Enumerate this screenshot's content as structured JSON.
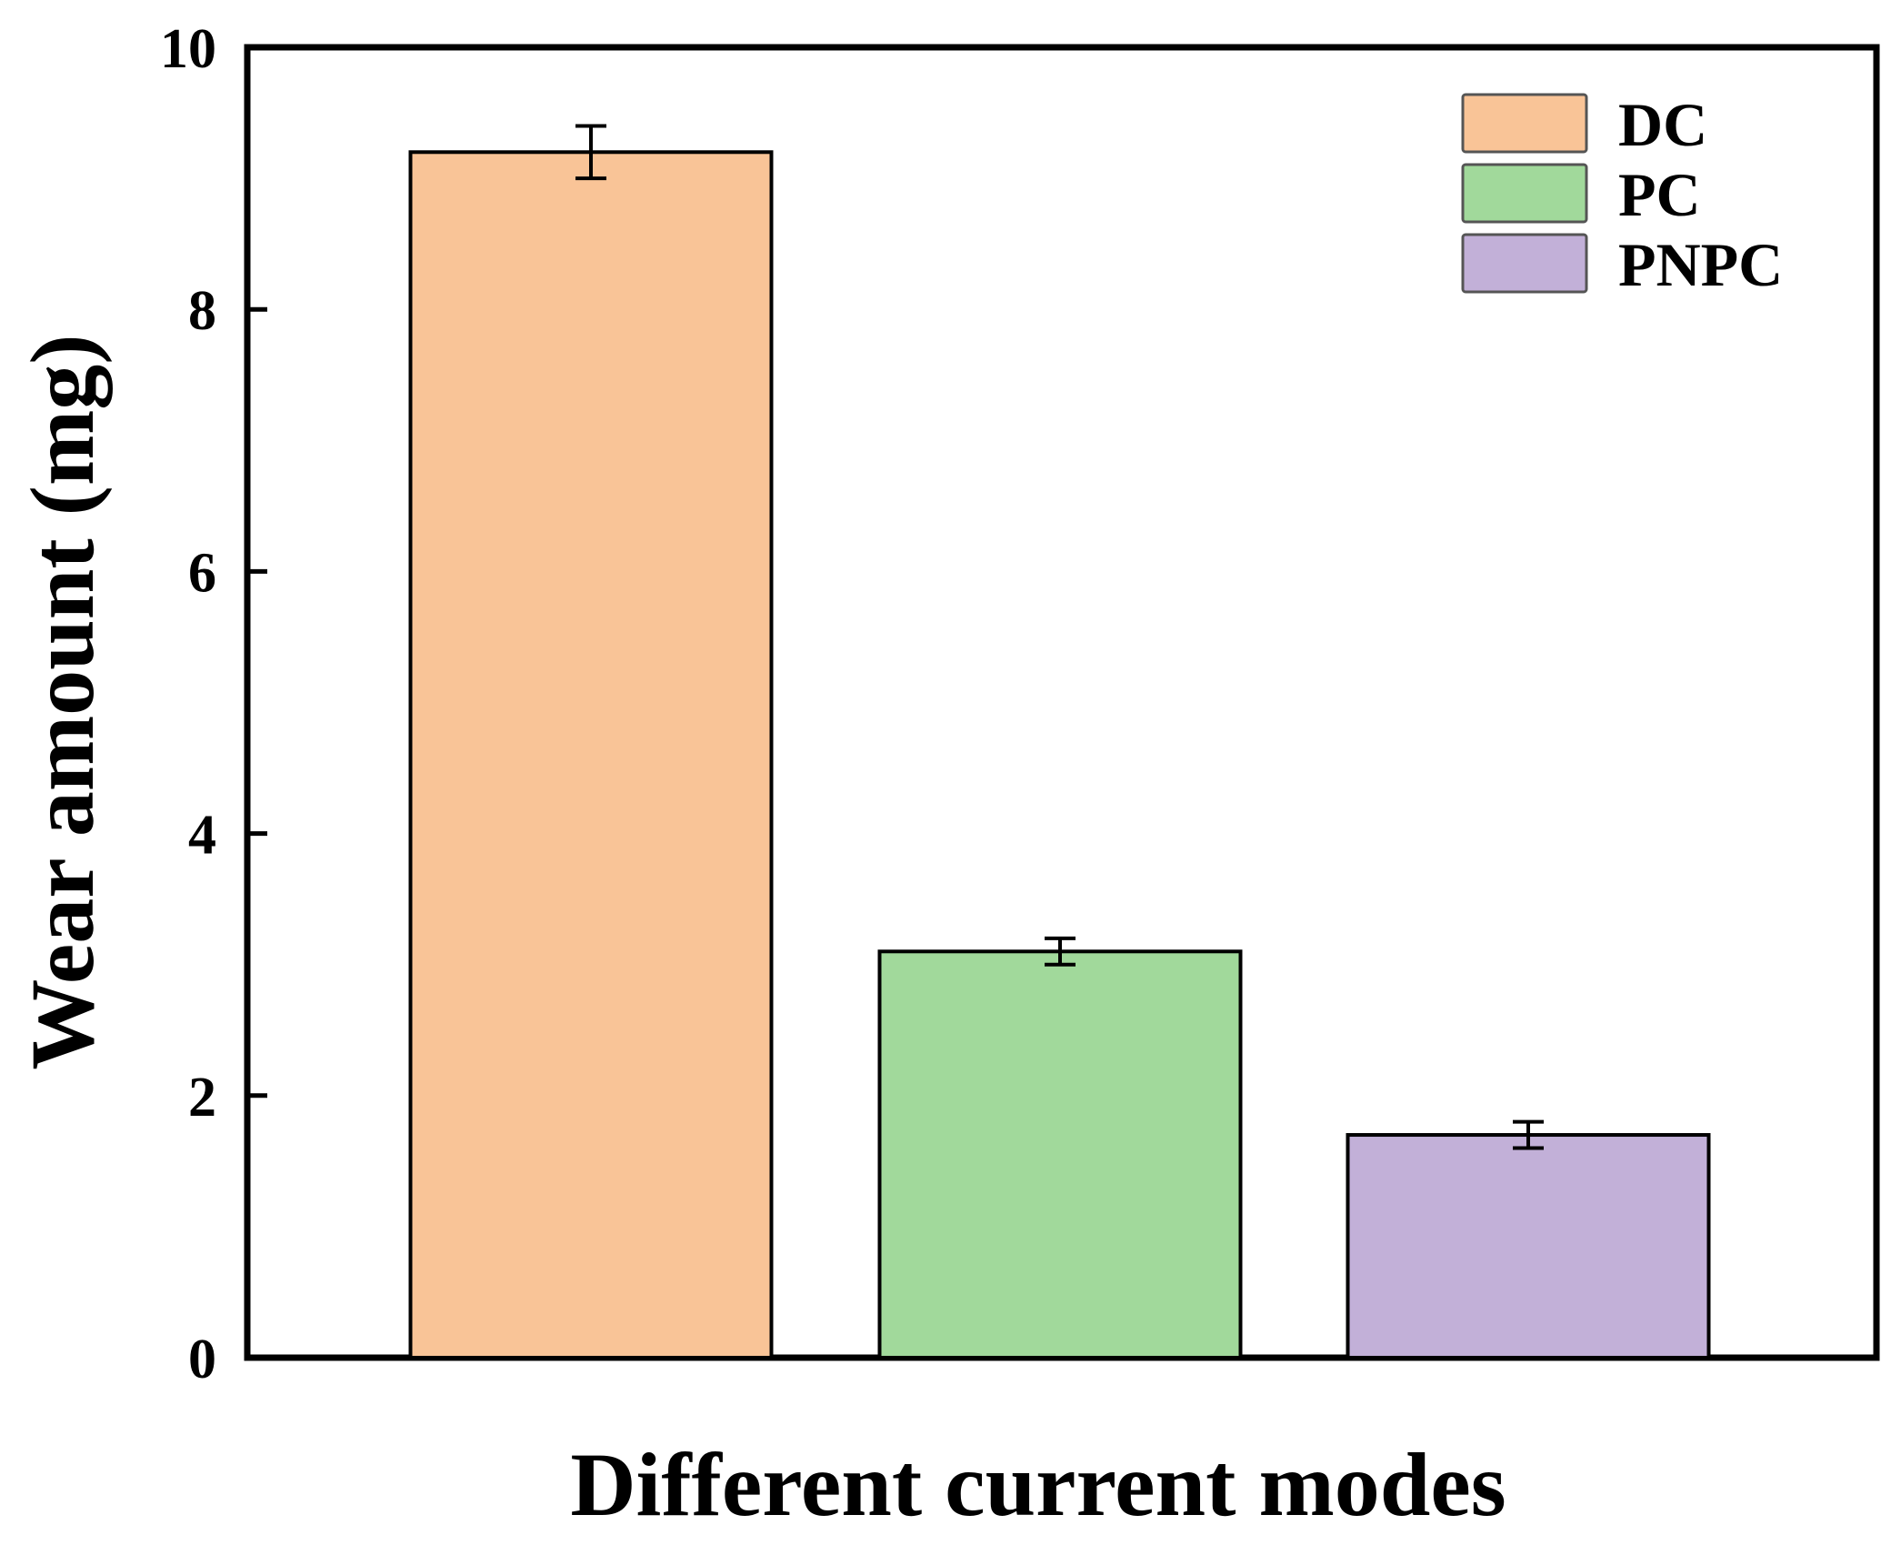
{
  "chart_data": {
    "type": "bar",
    "title": "",
    "xlabel": "Different current modes",
    "ylabel": "Wear amount (mg)",
    "ylim": [
      0,
      10
    ],
    "yticks": [
      "0",
      "2",
      "4",
      "6",
      "8",
      "10"
    ],
    "xtick_labels_shown": false,
    "grid": false,
    "legend_position": "top-right",
    "categories": [
      "DC",
      "PC",
      "PNPC"
    ],
    "values": [
      9.2,
      3.1,
      1.7
    ],
    "errors": [
      0.2,
      0.1,
      0.1
    ],
    "colors": [
      "#f9c497",
      "#a1d99b",
      "#c2b0d8"
    ],
    "edge_color": "#000000"
  }
}
